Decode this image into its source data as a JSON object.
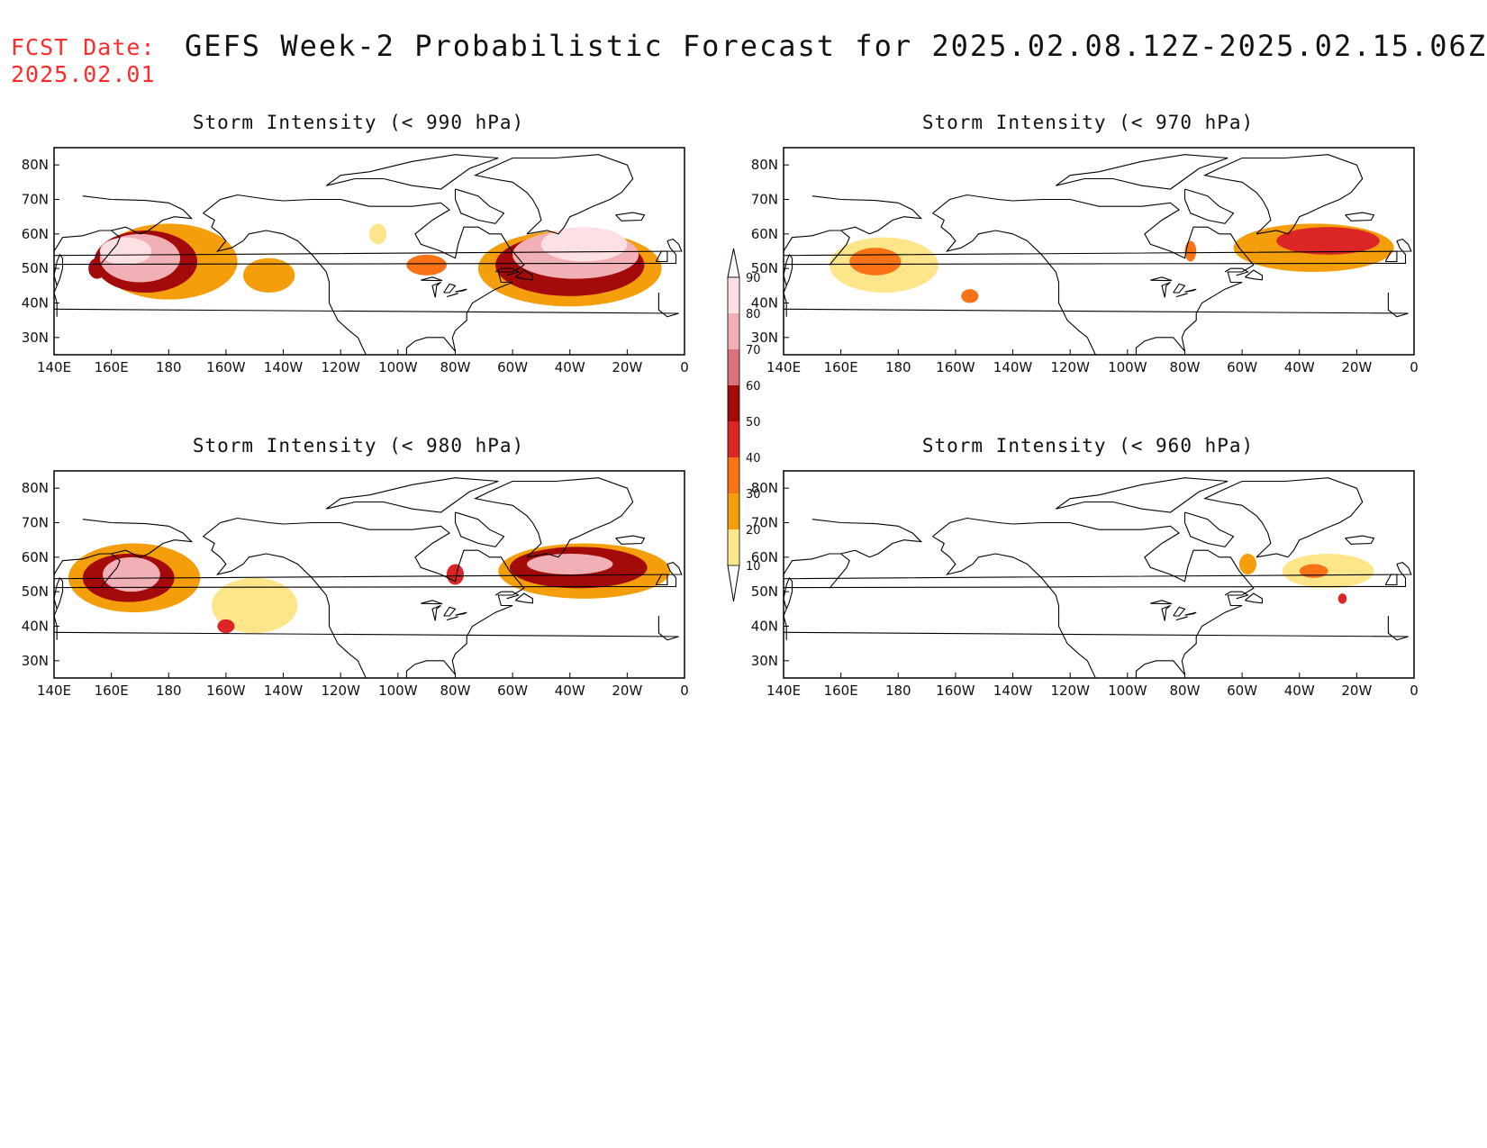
{
  "header": {
    "fcst_label": "FCST Date:",
    "fcst_date": "2025.02.01",
    "title": "GEFS Week-2 Probabilistic Forecast for 2025.02.08.12Z-2025.02.15.06Z"
  },
  "colorbar": {
    "levels": [
      "10",
      "20",
      "30",
      "40",
      "50",
      "60",
      "70",
      "80",
      "90"
    ],
    "colors": [
      "#fff9c4",
      "#fde68a",
      "#f59e0b",
      "#f97316",
      "#dc2626",
      "#a30b0b",
      "#d9727a",
      "#f0b0b6",
      "#fce0e3"
    ]
  },
  "axes": {
    "lon_labels": [
      "140E",
      "160E",
      "180",
      "160W",
      "140W",
      "120W",
      "100W",
      "80W",
      "60W",
      "40W",
      "20W",
      "0"
    ],
    "lat_labels": [
      "80N",
      "70N",
      "60N",
      "50N",
      "40N",
      "30N"
    ]
  },
  "panels": [
    {
      "title": "Storm Intensity (< 990 hPa)",
      "blobs": [
        {
          "lon": 180,
          "lat": 52,
          "rx": 24,
          "ry": 11,
          "level": 2
        },
        {
          "lon": 172,
          "lat": 52,
          "rx": 18,
          "ry": 9,
          "level": 5
        },
        {
          "lon": 170,
          "lat": 53,
          "rx": 14,
          "ry": 7,
          "level": 7
        },
        {
          "lon": 165,
          "lat": 55,
          "rx": 9,
          "ry": 4,
          "level": 8
        },
        {
          "lon": 155,
          "lat": 50,
          "rx": 3,
          "ry": 3,
          "level": 5
        },
        {
          "lon": -145,
          "lat": 48,
          "rx": 9,
          "ry": 5,
          "level": 2
        },
        {
          "lon": -40,
          "lat": 50,
          "rx": 32,
          "ry": 11,
          "level": 2
        },
        {
          "lon": -40,
          "lat": 51,
          "rx": 26,
          "ry": 9,
          "level": 5
        },
        {
          "lon": -38,
          "lat": 54,
          "rx": 22,
          "ry": 7,
          "level": 7
        },
        {
          "lon": -35,
          "lat": 57,
          "rx": 15,
          "ry": 5,
          "level": 8
        },
        {
          "lon": -90,
          "lat": 51,
          "rx": 7,
          "ry": 3,
          "level": 3
        },
        {
          "lon": -107,
          "lat": 60,
          "rx": 3,
          "ry": 3,
          "level": 1
        }
      ]
    },
    {
      "title": "Storm Intensity (< 970 hPa)",
      "blobs": [
        {
          "lon": 175,
          "lat": 51,
          "rx": 19,
          "ry": 8,
          "level": 1
        },
        {
          "lon": 172,
          "lat": 52,
          "rx": 9,
          "ry": 4,
          "level": 3
        },
        {
          "lon": -155,
          "lat": 42,
          "rx": 3,
          "ry": 2,
          "level": 3
        },
        {
          "lon": -35,
          "lat": 56,
          "rx": 28,
          "ry": 7,
          "level": 2
        },
        {
          "lon": -30,
          "lat": 58,
          "rx": 18,
          "ry": 4,
          "level": 4
        },
        {
          "lon": -78,
          "lat": 55,
          "rx": 2,
          "ry": 3,
          "level": 3
        }
      ]
    },
    {
      "title": "Storm Intensity (< 980 hPa)",
      "blobs": [
        {
          "lon": 168,
          "lat": 54,
          "rx": 23,
          "ry": 10,
          "level": 2
        },
        {
          "lon": 166,
          "lat": 54,
          "rx": 16,
          "ry": 7,
          "level": 5
        },
        {
          "lon": 167,
          "lat": 55,
          "rx": 10,
          "ry": 5,
          "level": 7
        },
        {
          "lon": -150,
          "lat": 46,
          "rx": 15,
          "ry": 8,
          "level": 1
        },
        {
          "lon": -160,
          "lat": 40,
          "rx": 3,
          "ry": 2,
          "level": 4
        },
        {
          "lon": -35,
          "lat": 56,
          "rx": 30,
          "ry": 8,
          "level": 2
        },
        {
          "lon": -37,
          "lat": 57,
          "rx": 24,
          "ry": 6,
          "level": 5
        },
        {
          "lon": -40,
          "lat": 58,
          "rx": 15,
          "ry": 3,
          "level": 7
        },
        {
          "lon": -80,
          "lat": 55,
          "rx": 3,
          "ry": 3,
          "level": 4
        }
      ]
    },
    {
      "title": "Storm Intensity (< 960 hPa)",
      "blobs": [
        {
          "lon": -30,
          "lat": 56,
          "rx": 16,
          "ry": 5,
          "level": 1
        },
        {
          "lon": -35,
          "lat": 56,
          "rx": 5,
          "ry": 2,
          "level": 3
        },
        {
          "lon": -58,
          "lat": 58,
          "rx": 3,
          "ry": 3,
          "level": 2
        },
        {
          "lon": -25,
          "lat": 48,
          "rx": 1.5,
          "ry": 1.5,
          "level": 4
        }
      ]
    }
  ]
}
